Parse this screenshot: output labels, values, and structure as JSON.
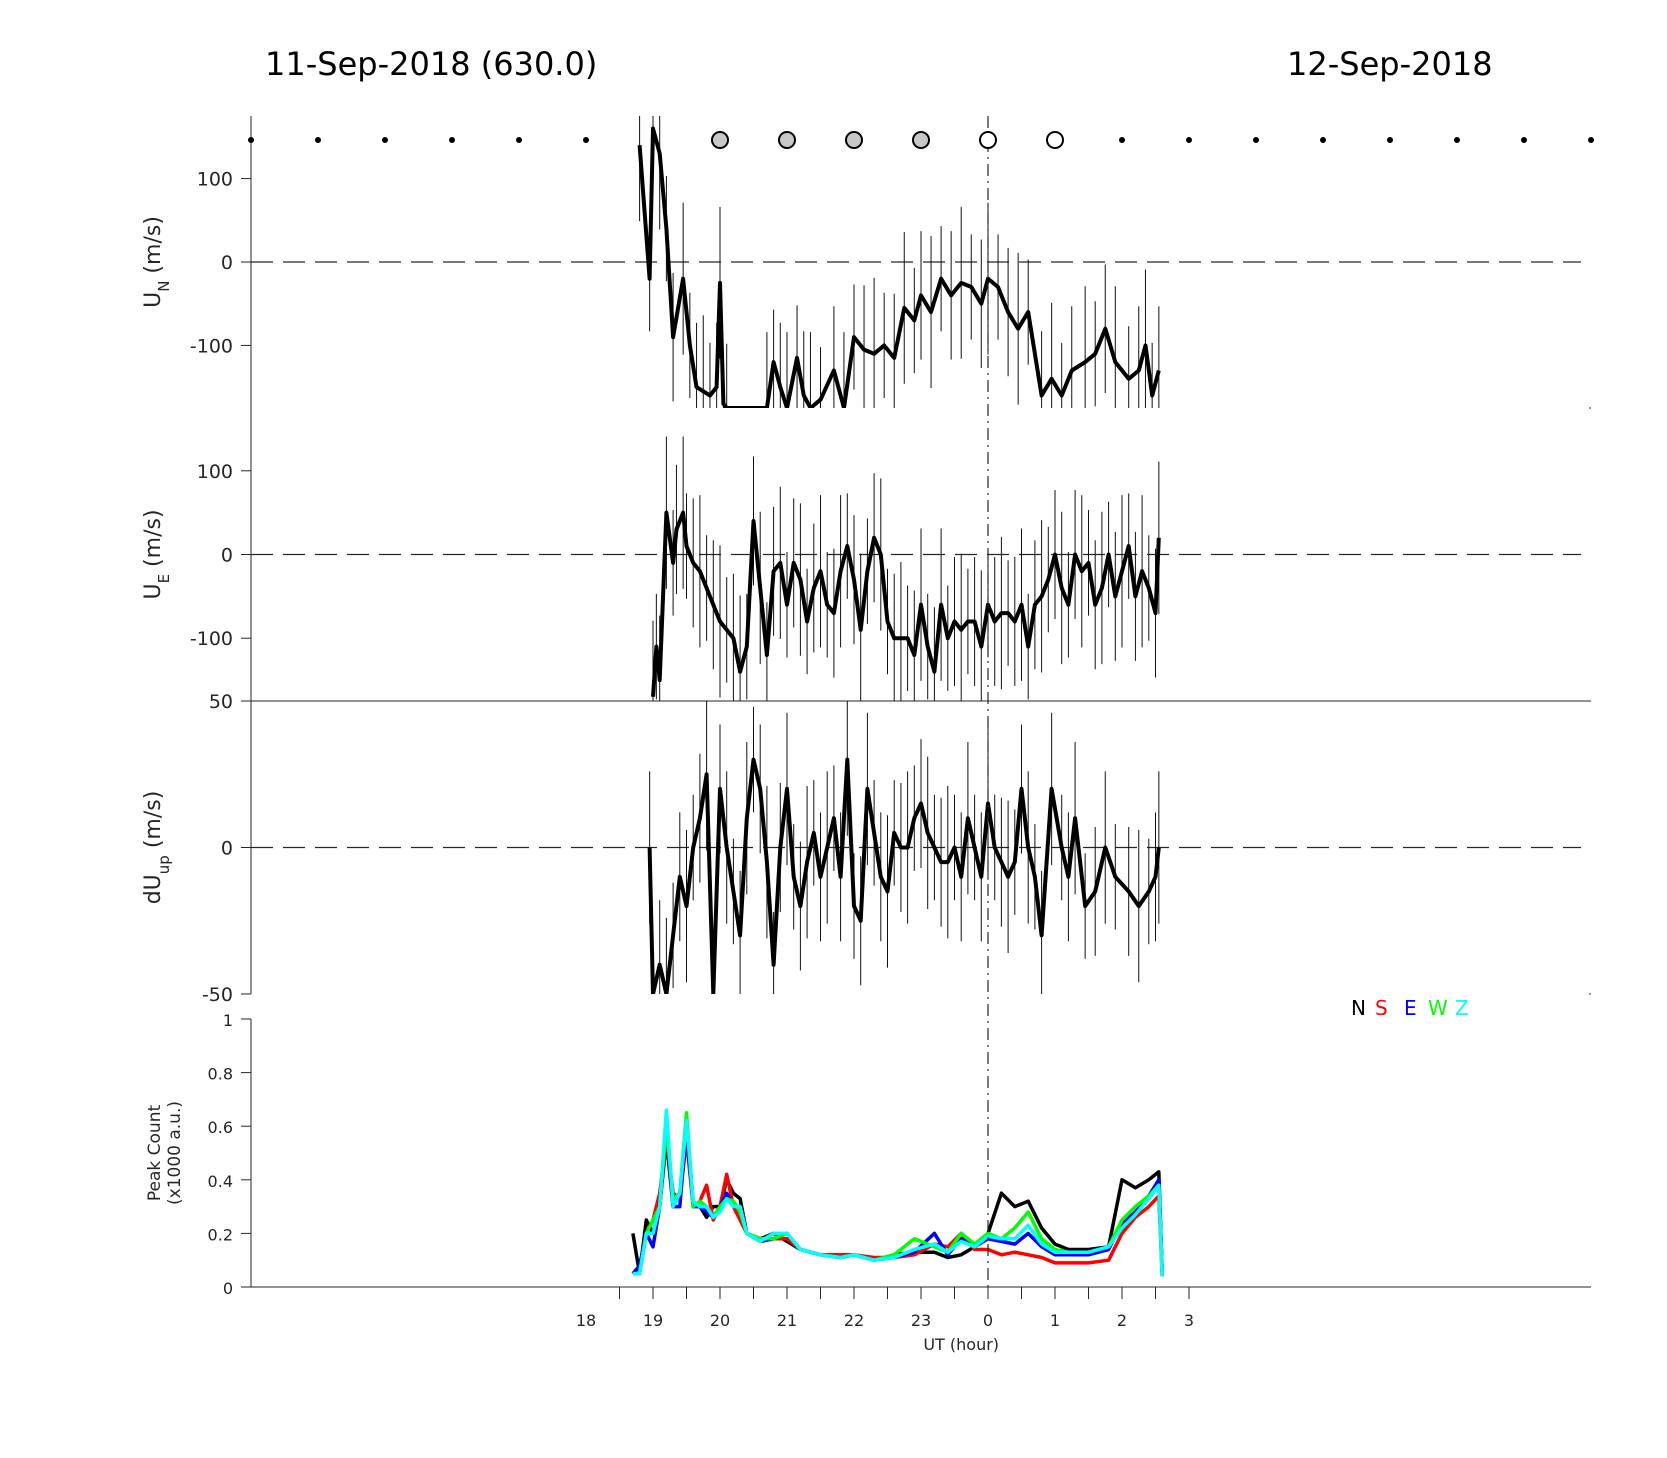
{
  "titles": {
    "left": "11-Sep-2018 (630.0)",
    "right": "12-Sep-2018"
  },
  "colors": {
    "N": "#000000",
    "S": "#ff0000",
    "E": "#0000ff",
    "W": "#00ff00",
    "Z": "#00ffff",
    "moon_filled": "#c8c8c8"
  },
  "chart_data": [
    {
      "type": "line",
      "panel": "UN",
      "ylabel_main": "U",
      "ylabel_sub": "N",
      "ylabel_unit": "(m/s)",
      "ylim": [
        -175,
        175
      ],
      "yticks": [
        100,
        0,
        -100
      ],
      "ytick_labels": [
        "100",
        "0",
        "-100"
      ],
      "x_hours": [
        18.8,
        18.95,
        19.0,
        19.1,
        19.2,
        19.3,
        19.45,
        19.55,
        19.65,
        19.75,
        19.85,
        19.95,
        20.0,
        20.05,
        20.1,
        20.7,
        20.8,
        20.9,
        21.0,
        21.15,
        21.25,
        21.35,
        21.5,
        21.7,
        21.85,
        22.0,
        22.15,
        22.3,
        22.45,
        22.6,
        22.75,
        22.9,
        23.0,
        23.15,
        23.3,
        23.45,
        23.6,
        23.75,
        23.9,
        24.0,
        24.15,
        24.3,
        24.45,
        24.6,
        24.8,
        24.95,
        25.1,
        25.25,
        25.45,
        25.6,
        25.75,
        25.9,
        26.1,
        26.25,
        26.35,
        26.45,
        26.55
      ],
      "values": [
        140,
        -20,
        160,
        130,
        40,
        -90,
        -20,
        -100,
        -150,
        -155,
        -160,
        -150,
        -25,
        -170,
        -175,
        -175,
        -120,
        -150,
        -175,
        -115,
        -160,
        -175,
        -165,
        -130,
        -175,
        -90,
        -105,
        -110,
        -100,
        -115,
        -55,
        -70,
        -40,
        -60,
        -20,
        -40,
        -25,
        -30,
        -50,
        -20,
        -30,
        -60,
        -80,
        -60,
        -160,
        -140,
        -160,
        -130,
        -120,
        -110,
        -80,
        -120,
        -140,
        -130,
        -100,
        -160,
        -130
      ]
    },
    {
      "type": "line",
      "panel": "UE",
      "ylabel_main": "U",
      "ylabel_sub": "E",
      "ylabel_unit": "(m/s)",
      "ylim": [
        -175,
        175
      ],
      "yticks": [
        100,
        0,
        -100
      ],
      "ytick_labels": [
        "100",
        "0",
        "-100"
      ],
      "x_hours": [
        19.0,
        19.05,
        19.1,
        19.2,
        19.3,
        19.35,
        19.45,
        19.5,
        19.6,
        19.7,
        19.8,
        19.9,
        20.0,
        20.1,
        20.2,
        20.3,
        20.4,
        20.5,
        20.6,
        20.7,
        20.8,
        20.9,
        21.0,
        21.1,
        21.2,
        21.3,
        21.4,
        21.5,
        21.6,
        21.7,
        21.8,
        21.9,
        22.0,
        22.1,
        22.2,
        22.3,
        22.4,
        22.5,
        22.6,
        22.7,
        22.8,
        22.9,
        23.0,
        23.1,
        23.2,
        23.3,
        23.4,
        23.5,
        23.6,
        23.7,
        23.8,
        23.9,
        24.0,
        24.1,
        24.2,
        24.3,
        24.4,
        24.5,
        24.6,
        24.7,
        24.8,
        24.9,
        25.0,
        25.1,
        25.2,
        25.3,
        25.4,
        25.5,
        25.6,
        25.7,
        25.8,
        25.9,
        26.0,
        26.1,
        26.2,
        26.3,
        26.4,
        26.5,
        26.55
      ],
      "values": [
        -170,
        -110,
        -150,
        50,
        -10,
        30,
        50,
        10,
        -10,
        -20,
        -40,
        -60,
        -80,
        -90,
        -100,
        -140,
        -110,
        40,
        -40,
        -120,
        -20,
        -10,
        -60,
        -10,
        -30,
        -80,
        -40,
        -20,
        -60,
        -70,
        -20,
        10,
        -30,
        -90,
        -20,
        20,
        0,
        -80,
        -100,
        -100,
        -100,
        -120,
        -60,
        -110,
        -140,
        -60,
        -100,
        -80,
        -90,
        -80,
        -80,
        -110,
        -60,
        -80,
        -70,
        -70,
        -80,
        -60,
        -110,
        -60,
        -50,
        -30,
        0,
        -40,
        -60,
        0,
        -20,
        -10,
        -60,
        -40,
        0,
        -50,
        -20,
        10,
        -50,
        -20,
        -40,
        -70,
        20
      ]
    },
    {
      "type": "line",
      "panel": "dUup",
      "ylabel_main": "dU",
      "ylabel_sub": "up",
      "ylabel_unit": "(m/s)",
      "ylim": [
        -50,
        50
      ],
      "yticks": [
        50,
        0,
        -50
      ],
      "ytick_labels": [
        "50",
        "0",
        "-50"
      ],
      "x_hours": [
        18.95,
        19.0,
        19.1,
        19.2,
        19.3,
        19.4,
        19.5,
        19.6,
        19.7,
        19.8,
        19.9,
        20.0,
        20.1,
        20.2,
        20.3,
        20.4,
        20.5,
        20.6,
        20.7,
        20.8,
        20.9,
        21.0,
        21.1,
        21.2,
        21.3,
        21.4,
        21.5,
        21.6,
        21.7,
        21.8,
        21.9,
        22.0,
        22.1,
        22.2,
        22.3,
        22.4,
        22.5,
        22.6,
        22.7,
        22.8,
        22.9,
        23.0,
        23.1,
        23.2,
        23.3,
        23.4,
        23.5,
        23.6,
        23.7,
        23.8,
        23.9,
        24.0,
        24.1,
        24.2,
        24.3,
        24.4,
        24.5,
        24.6,
        24.7,
        24.8,
        24.95,
        25.1,
        25.2,
        25.3,
        25.45,
        25.6,
        25.75,
        25.9,
        26.1,
        26.25,
        26.4,
        26.5,
        26.55
      ],
      "values": [
        0,
        -50,
        -40,
        -50,
        -30,
        -10,
        -20,
        0,
        10,
        25,
        -50,
        20,
        0,
        -15,
        -30,
        10,
        30,
        20,
        -5,
        -40,
        0,
        20,
        -10,
        -20,
        -5,
        5,
        -10,
        0,
        10,
        -10,
        30,
        -20,
        -25,
        20,
        5,
        -10,
        -15,
        5,
        0,
        0,
        10,
        15,
        5,
        0,
        -5,
        -5,
        0,
        -10,
        10,
        0,
        -10,
        15,
        0,
        -5,
        -10,
        -5,
        20,
        0,
        -10,
        -30,
        20,
        0,
        -10,
        10,
        -20,
        -15,
        0,
        -10,
        -15,
        -20,
        -15,
        -10,
        0
      ]
    },
    {
      "type": "line",
      "panel": "peak",
      "ylabel_line1": "Peak Count",
      "ylabel_line2": "(x1000 a.u.)",
      "ylim": [
        0,
        1
      ],
      "yticks": [
        0,
        0.2,
        0.4,
        0.6,
        0.8,
        1
      ],
      "ytick_labels": [
        "0",
        "0.2",
        "0.4",
        "0.6",
        "0.8",
        "1"
      ],
      "xlabel": "UT (hour)",
      "xtick_labels": [
        "18",
        "19",
        "20",
        "21",
        "22",
        "23",
        "0",
        "1",
        "2",
        "3"
      ],
      "xtick_hours": [
        18,
        19,
        20,
        21,
        22,
        23,
        24,
        25,
        26,
        27
      ],
      "xlim_hours": [
        13,
        33
      ],
      "legend": [
        "N",
        "S",
        "E",
        "W",
        "Z"
      ],
      "legend_position": "top-right",
      "x_hours": [
        18.7,
        18.8,
        18.9,
        19.0,
        19.1,
        19.2,
        19.3,
        19.4,
        19.5,
        19.6,
        19.7,
        19.8,
        19.9,
        20.0,
        20.1,
        20.2,
        20.3,
        20.4,
        20.6,
        20.8,
        21.0,
        21.2,
        21.5,
        21.8,
        22.0,
        22.3,
        22.6,
        22.9,
        23.2,
        23.4,
        23.6,
        23.8,
        24.0,
        24.2,
        24.4,
        24.6,
        24.8,
        25.0,
        25.2,
        25.5,
        25.8,
        26.0,
        26.2,
        26.4,
        26.55,
        26.6
      ],
      "series": [
        {
          "name": "N",
          "values": [
            0.2,
            0.05,
            0.25,
            0.2,
            0.3,
            0.55,
            0.3,
            0.35,
            0.6,
            0.32,
            0.3,
            0.26,
            0.3,
            0.3,
            0.4,
            0.35,
            0.33,
            0.2,
            0.18,
            0.2,
            0.17,
            0.14,
            0.12,
            0.11,
            0.12,
            0.1,
            0.12,
            0.13,
            0.13,
            0.11,
            0.12,
            0.15,
            0.2,
            0.35,
            0.3,
            0.32,
            0.22,
            0.16,
            0.14,
            0.14,
            0.15,
            0.4,
            0.37,
            0.4,
            0.43,
            0.05
          ]
        },
        {
          "name": "S",
          "values": [
            0.05,
            0.05,
            0.2,
            0.25,
            0.35,
            0.55,
            0.35,
            0.33,
            0.55,
            0.3,
            0.32,
            0.38,
            0.25,
            0.3,
            0.42,
            0.3,
            0.25,
            0.2,
            0.17,
            0.18,
            0.18,
            0.14,
            0.12,
            0.12,
            0.12,
            0.11,
            0.11,
            0.12,
            0.16,
            0.15,
            0.2,
            0.14,
            0.14,
            0.12,
            0.13,
            0.12,
            0.11,
            0.09,
            0.09,
            0.09,
            0.1,
            0.2,
            0.26,
            0.3,
            0.34,
            0.04
          ]
        },
        {
          "name": "E",
          "values": [
            0.05,
            0.08,
            0.2,
            0.15,
            0.3,
            0.6,
            0.3,
            0.3,
            0.6,
            0.3,
            0.3,
            0.28,
            0.26,
            0.3,
            0.35,
            0.3,
            0.3,
            0.2,
            0.17,
            0.18,
            0.2,
            0.14,
            0.12,
            0.11,
            0.12,
            0.1,
            0.11,
            0.13,
            0.2,
            0.12,
            0.18,
            0.15,
            0.18,
            0.17,
            0.16,
            0.2,
            0.15,
            0.12,
            0.12,
            0.12,
            0.14,
            0.24,
            0.28,
            0.34,
            0.4,
            0.06
          ]
        },
        {
          "name": "W",
          "values": [
            0.05,
            0.05,
            0.2,
            0.25,
            0.3,
            0.6,
            0.33,
            0.35,
            0.65,
            0.3,
            0.32,
            0.3,
            0.26,
            0.3,
            0.33,
            0.32,
            0.28,
            0.2,
            0.18,
            0.18,
            0.2,
            0.14,
            0.12,
            0.11,
            0.12,
            0.1,
            0.12,
            0.18,
            0.15,
            0.13,
            0.2,
            0.16,
            0.2,
            0.18,
            0.22,
            0.28,
            0.18,
            0.14,
            0.13,
            0.13,
            0.15,
            0.25,
            0.3,
            0.34,
            0.38,
            0.05
          ]
        },
        {
          "name": "Z",
          "values": [
            0.05,
            0.05,
            0.2,
            0.2,
            0.3,
            0.66,
            0.3,
            0.35,
            0.62,
            0.32,
            0.3,
            0.3,
            0.26,
            0.28,
            0.33,
            0.3,
            0.3,
            0.2,
            0.17,
            0.2,
            0.2,
            0.14,
            0.12,
            0.11,
            0.12,
            0.1,
            0.11,
            0.14,
            0.16,
            0.13,
            0.17,
            0.15,
            0.19,
            0.18,
            0.18,
            0.23,
            0.16,
            0.13,
            0.13,
            0.13,
            0.15,
            0.22,
            0.27,
            0.33,
            0.38,
            0.04
          ]
        }
      ]
    }
  ],
  "moon_markers": {
    "x_hours": [
      13,
      14,
      15,
      16,
      17,
      18,
      20,
      21,
      22,
      23,
      24,
      25,
      26,
      27,
      28,
      29,
      30,
      31,
      32,
      33
    ],
    "kinds": [
      "dot",
      "dot",
      "dot",
      "dot",
      "dot",
      "dot",
      "filled",
      "filled",
      "filled",
      "filled",
      "open",
      "open",
      "dot",
      "dot",
      "dot",
      "dot",
      "dot",
      "dot",
      "dot",
      "dot"
    ]
  }
}
